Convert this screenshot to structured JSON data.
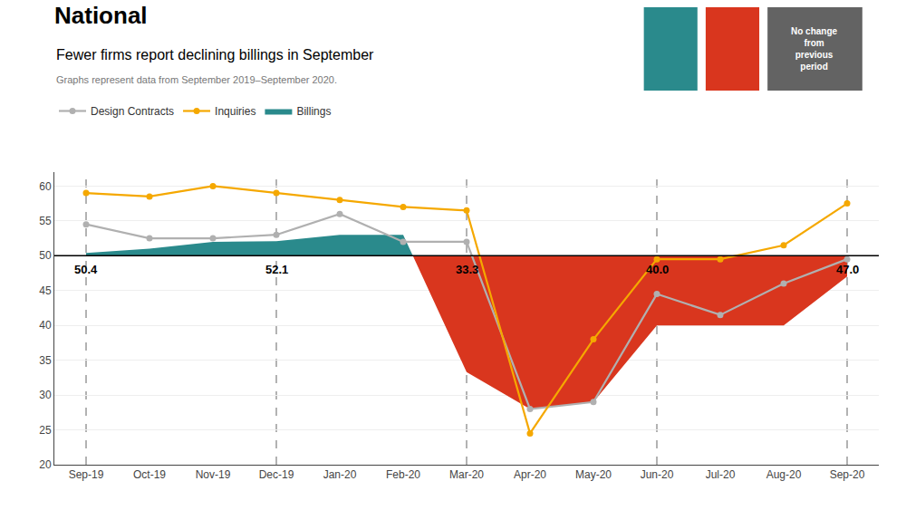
{
  "chart_data": {
    "type": "line",
    "title": "National",
    "subtitle": "Fewer firms report declining billings in September",
    "caption": "Graphs represent data from September 2019–September 2020.",
    "categories": [
      "Sep-19",
      "Oct-19",
      "Nov-19",
      "Dec-19",
      "Jan-20",
      "Feb-20",
      "Mar-20",
      "Apr-20",
      "May-20",
      "Jun-20",
      "Jul-20",
      "Aug-20",
      "Sep-20"
    ],
    "series": [
      {
        "name": "Design Contracts",
        "color": "#b0b0b0",
        "marker": "circle",
        "values": [
          54.5,
          52.5,
          52.5,
          53.0,
          56.0,
          52.0,
          52.0,
          28.0,
          29.0,
          44.5,
          41.5,
          46.0,
          49.5
        ]
      },
      {
        "name": "Inquiries",
        "color": "#f5a800",
        "marker": "circle",
        "values": [
          59.0,
          58.5,
          60.0,
          59.0,
          58.0,
          57.0,
          56.5,
          24.5,
          38.0,
          49.5,
          49.5,
          51.5,
          57.5
        ]
      },
      {
        "name": "Billings",
        "type": "area",
        "colors": [
          "#2a8a8c",
          "#d9361e"
        ],
        "values": [
          50.4,
          51.0,
          52.0,
          52.1,
          53.0,
          53.0,
          33.3,
          28.0,
          29.0,
          40.0,
          40.0,
          40.0,
          47.0
        ]
      }
    ],
    "threshold": 50,
    "reference_lines": [
      "Sep-19",
      "Dec-19",
      "Mar-20",
      "Jun-20",
      "Sep-20"
    ],
    "annotations": [
      {
        "category": "Sep-19",
        "text": "50.4"
      },
      {
        "category": "Dec-19",
        "text": "52.1"
      },
      {
        "category": "Mar-20",
        "text": "33.3"
      },
      {
        "category": "Jun-20",
        "text": "40.0"
      },
      {
        "category": "Sep-20",
        "text": "47.0"
      }
    ],
    "ylim": [
      20,
      62
    ],
    "yticks": [
      20,
      25,
      30,
      35,
      40,
      45,
      50,
      55,
      60
    ],
    "grid": "y",
    "legend": "top",
    "key": [
      {
        "color": "#2a8a8c"
      },
      {
        "color": "#d9361e"
      },
      {
        "color": "#636363",
        "text": "No change\nfrom\nprevious\nperiod"
      }
    ]
  }
}
